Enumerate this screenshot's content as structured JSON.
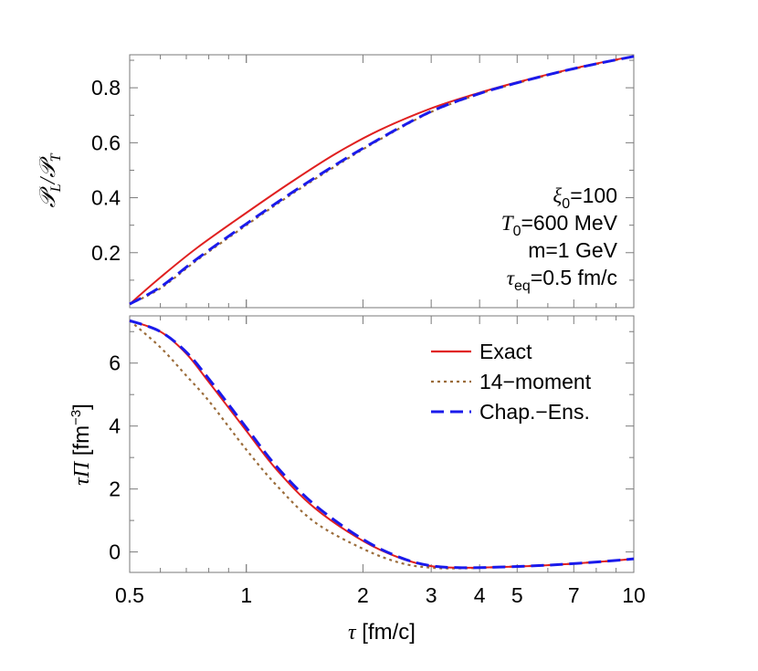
{
  "chart_data": [
    {
      "type": "line",
      "panel": "top",
      "x_scale": "log",
      "xlim": [
        0.5,
        10
      ],
      "ylim": [
        0,
        0.92
      ],
      "yticks": [
        {
          "v": 0.2,
          "label": "0.2"
        },
        {
          "v": 0.4,
          "label": "0.4"
        },
        {
          "v": 0.6,
          "label": "0.6"
        },
        {
          "v": 0.8,
          "label": "0.8"
        }
      ],
      "ylabel": {
        "main": "𝒫",
        "sub1": "L",
        "slash": "/",
        "main2": "𝒫",
        "sub2": "T"
      },
      "annotations": [
        {
          "pre": "ξ",
          "sub": "0",
          "post": "=100"
        },
        {
          "pre": "T",
          "sub": "0",
          "post": "=600 MeV"
        },
        {
          "pre": "",
          "sub": "",
          "post": "m=1 GeV"
        },
        {
          "pre": "τ",
          "sub": "eq",
          "post": "=0.5 fm/c"
        }
      ],
      "series": [
        {
          "name": "Exact",
          "color": "#e02020",
          "style": "solid",
          "x": [
            0.5,
            0.6,
            0.75,
            1.0,
            1.3,
            1.7,
            2.2,
            3.0,
            4.0,
            5.0,
            6.5,
            8.0,
            10.0
          ],
          "y": [
            0.013,
            0.11,
            0.22,
            0.345,
            0.455,
            0.56,
            0.645,
            0.725,
            0.782,
            0.82,
            0.86,
            0.888,
            0.915
          ]
        },
        {
          "name": "14-moment",
          "color": "#9b6c3a",
          "style": "dotted",
          "x": [
            0.5,
            0.6,
            0.75,
            1.0,
            1.3,
            1.7,
            2.2,
            3.0,
            4.0,
            5.0,
            6.5,
            8.0,
            10.0
          ],
          "y": [
            0.013,
            0.07,
            0.175,
            0.3,
            0.41,
            0.515,
            0.61,
            0.712,
            0.778,
            0.817,
            0.858,
            0.886,
            0.914
          ]
        },
        {
          "name": "Chap.-Ens.",
          "color": "#1a1aeb",
          "style": "dashed",
          "x": [
            0.5,
            0.6,
            0.75,
            1.0,
            1.3,
            1.7,
            2.2,
            3.0,
            4.0,
            5.0,
            6.5,
            8.0,
            10.0
          ],
          "y": [
            0.013,
            0.075,
            0.18,
            0.305,
            0.415,
            0.52,
            0.613,
            0.714,
            0.779,
            0.818,
            0.859,
            0.887,
            0.914
          ]
        }
      ]
    },
    {
      "type": "line",
      "panel": "bottom",
      "x_scale": "log",
      "xlim": [
        0.5,
        10
      ],
      "ylim": [
        -0.65,
        7.5
      ],
      "xticks": [
        {
          "v": 0.5,
          "label": "0.5"
        },
        {
          "v": 1,
          "label": "1"
        },
        {
          "v": 2,
          "label": "2"
        },
        {
          "v": 3,
          "label": "3"
        },
        {
          "v": 4,
          "label": "4"
        },
        {
          "v": 5,
          "label": "5"
        },
        {
          "v": 7,
          "label": "7"
        },
        {
          "v": 10,
          "label": "10"
        }
      ],
      "yticks": [
        {
          "v": 0,
          "label": "0"
        },
        {
          "v": 2,
          "label": "2"
        },
        {
          "v": 4,
          "label": "4"
        },
        {
          "v": 6,
          "label": "6"
        }
      ],
      "xlabel": {
        "sym": "τ",
        "rest": " [fm/c]"
      },
      "ylabel": {
        "sym": "τΠ",
        "rest": " [fm",
        "sup": "−3",
        "end": "]"
      },
      "legend": [
        {
          "label": "Exact",
          "color": "#e02020",
          "style": "solid"
        },
        {
          "label": "14−moment",
          "color": "#9b6c3a",
          "style": "dotted"
        },
        {
          "label": "Chap.−Ens.",
          "color": "#1a1aeb",
          "style": "dashed"
        }
      ],
      "series": [
        {
          "name": "Exact",
          "color": "#e02020",
          "style": "solid",
          "x": [
            0.5,
            0.6,
            0.7,
            0.8,
            1.0,
            1.2,
            1.5,
            2.0,
            2.5,
            3.0,
            3.6,
            4.5,
            6.0,
            8.0,
            10.0
          ],
          "y": [
            7.35,
            7.0,
            6.3,
            5.4,
            3.85,
            2.6,
            1.4,
            0.35,
            -0.2,
            -0.45,
            -0.5,
            -0.48,
            -0.42,
            -0.32,
            -0.22
          ]
        },
        {
          "name": "14-moment",
          "color": "#9b6c3a",
          "style": "dotted",
          "x": [
            0.5,
            0.6,
            0.7,
            0.8,
            1.0,
            1.2,
            1.5,
            2.0,
            2.5,
            3.0,
            3.6,
            4.5,
            6.0,
            8.0,
            10.0
          ],
          "y": [
            7.35,
            6.5,
            5.6,
            4.8,
            3.25,
            2.1,
            0.95,
            0.1,
            -0.35,
            -0.5,
            -0.52,
            -0.48,
            -0.42,
            -0.32,
            -0.22
          ]
        },
        {
          "name": "Chap.-Ens.",
          "color": "#1a1aeb",
          "style": "dashed",
          "x": [
            0.5,
            0.6,
            0.7,
            0.8,
            1.0,
            1.2,
            1.5,
            2.0,
            2.5,
            3.0,
            3.6,
            4.5,
            6.0,
            8.0,
            10.0
          ],
          "y": [
            7.35,
            7.0,
            6.35,
            5.5,
            3.95,
            2.7,
            1.5,
            0.4,
            -0.18,
            -0.44,
            -0.5,
            -0.48,
            -0.42,
            -0.32,
            -0.22
          ]
        }
      ]
    }
  ]
}
